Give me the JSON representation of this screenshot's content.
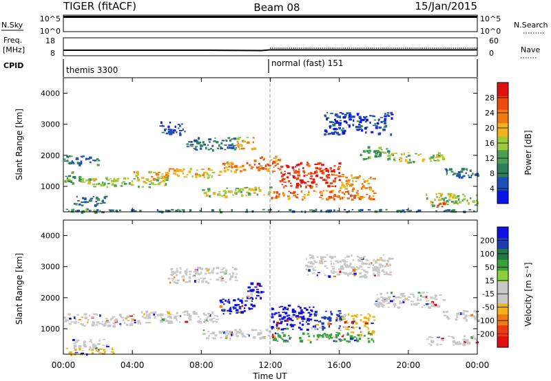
{
  "header": {
    "left": "TIGER (fitACF)",
    "center": "Beam 08",
    "right": "15/Jan/2015"
  },
  "top_panels": {
    "nsky_label": "N.Sky",
    "nsearch_label": "N.Search",
    "nsky_ticks": [
      "10^5",
      "10^0"
    ],
    "freq_label_1": "Freq.",
    "freq_label_2": "[MHz]",
    "freq_ticks": [
      "18",
      "8"
    ],
    "nave_label": "Nave",
    "nave_ticks": [
      "60",
      "0"
    ],
    "cpid_label": "CPID",
    "cpid_left": "themis 3300",
    "cpid_right": "normal (fast) 151"
  },
  "colors": {
    "power_scale": [
      "#0a14e6",
      "#1e50b4",
      "#2c7f5a",
      "#4aa050",
      "#9ccc3a",
      "#f2b21a",
      "#f07a12",
      "#ee4a10",
      "#e01010"
    ],
    "velocity_scale": [
      "#1010e6",
      "#1e3cb4",
      "#227848",
      "#3aa23a",
      "#8ad03a",
      "#c8c8c8",
      "#c8c8c8",
      "#f2b21a",
      "#f07a12",
      "#ee3a10",
      "#e01010"
    ]
  },
  "chart_data": [
    {
      "type": "heatmap",
      "title": "Power",
      "ylabel": "Slant Range [km]",
      "ylim": [
        180,
        4500
      ],
      "yticks": [
        "1000",
        "2000",
        "3000",
        "4000"
      ],
      "ytick_values": [
        1000,
        2000,
        3000,
        4000
      ],
      "colorbar_label": "Power [dB]",
      "colorbar_ticks": [
        "4",
        "8",
        "12",
        "16",
        "20",
        "24",
        "28"
      ],
      "colorbar_values": [
        4,
        8,
        12,
        16,
        20,
        24,
        28
      ],
      "colorbar_range": [
        0,
        32
      ],
      "bands": [
        {
          "t": [
            0.0,
            2.0
          ],
          "r": [
            1700,
            2000
          ],
          "v": 8
        },
        {
          "t": [
            0.0,
            1.0
          ],
          "r": [
            1100,
            1500
          ],
          "v": 12
        },
        {
          "t": [
            1.0,
            6.0
          ],
          "r": [
            1000,
            1300
          ],
          "v": 16
        },
        {
          "t": [
            0.5,
            2.5
          ],
          "r": [
            400,
            700
          ],
          "v": 8
        },
        {
          "t": [
            0.0,
            2.0
          ],
          "r": [
            200,
            300
          ],
          "v": 12
        },
        {
          "t": [
            4.0,
            6.0
          ],
          "r": [
            1200,
            1500
          ],
          "v": 20
        },
        {
          "t": [
            6.0,
            9.0
          ],
          "r": [
            1300,
            1600
          ],
          "v": 20
        },
        {
          "t": [
            9.0,
            11.0
          ],
          "r": [
            1500,
            1800
          ],
          "v": 24
        },
        {
          "t": [
            11.0,
            12.5
          ],
          "r": [
            1500,
            2000
          ],
          "v": 24
        },
        {
          "t": [
            12.5,
            16.0
          ],
          "r": [
            1000,
            1800
          ],
          "v": 28
        },
        {
          "t": [
            16.0,
            18.0
          ],
          "r": [
            900,
            1400
          ],
          "v": 20
        },
        {
          "t": [
            8.0,
            12.0
          ],
          "r": [
            700,
            1000
          ],
          "v": 16
        },
        {
          "t": [
            12.0,
            18.0
          ],
          "r": [
            600,
            900
          ],
          "v": 24
        },
        {
          "t": [
            17.0,
            19.0
          ],
          "r": [
            1900,
            2300
          ],
          "v": 12
        },
        {
          "t": [
            19.0,
            22.0
          ],
          "r": [
            1800,
            2100
          ],
          "v": 16
        },
        {
          "t": [
            22.0,
            24.0
          ],
          "r": [
            1300,
            1600
          ],
          "v": 8
        },
        {
          "t": [
            21.0,
            24.0
          ],
          "r": [
            400,
            800
          ],
          "v": 16
        },
        {
          "t": [
            21.5,
            22.2
          ],
          "r": [
            300,
            500
          ],
          "v": 28
        },
        {
          "t": [
            5.5,
            7.0
          ],
          "r": [
            2700,
            3100
          ],
          "v": 4
        },
        {
          "t": [
            7.0,
            10.0
          ],
          "r": [
            2200,
            2600
          ],
          "v": 8
        },
        {
          "t": [
            10.0,
            11.0
          ],
          "r": [
            2200,
            2600
          ],
          "v": 20
        },
        {
          "t": [
            15.0,
            19.0
          ],
          "r": [
            2700,
            3400
          ],
          "v": 4
        },
        {
          "t": [
            0.0,
            24.0
          ],
          "r": [
            200,
            280
          ],
          "v": 8
        }
      ]
    },
    {
      "type": "heatmap",
      "title": "Velocity",
      "ylabel": "Slant Range [km]",
      "xlabel": "Time UT",
      "xticks": [
        "00:00",
        "04:00",
        "08:00",
        "12:00",
        "16:00",
        "20:00",
        "00:00"
      ],
      "xtick_values": [
        0,
        4,
        8,
        12,
        16,
        20,
        24
      ],
      "ylim": [
        180,
        4500
      ],
      "yticks": [
        "1000",
        "2000",
        "3000",
        "4000"
      ],
      "ytick_values": [
        1000,
        2000,
        3000,
        4000
      ],
      "colorbar_label": "Velocity [m s⁻¹]",
      "colorbar_ticks": [
        "200",
        "100",
        "50",
        "15",
        "-15",
        "-50",
        "-100",
        "-200"
      ],
      "bands": [
        {
          "t": [
            0.0,
            4.0
          ],
          "r": [
            1100,
            1500
          ],
          "v": -15
        },
        {
          "t": [
            4.0,
            9.0
          ],
          "r": [
            1200,
            1600
          ],
          "v": 15
        },
        {
          "t": [
            0.5,
            2.5
          ],
          "r": [
            400,
            700
          ],
          "v": -15
        },
        {
          "t": [
            0.0,
            3.0
          ],
          "r": [
            200,
            400
          ],
          "v": -50
        },
        {
          "t": [
            9.0,
            11.0
          ],
          "r": [
            1500,
            2000
          ],
          "v": 200
        },
        {
          "t": [
            10.5,
            11.5
          ],
          "r": [
            2000,
            2500
          ],
          "v": 200
        },
        {
          "t": [
            12.0,
            14.5
          ],
          "r": [
            1000,
            1800
          ],
          "v": 200
        },
        {
          "t": [
            14.5,
            16.0
          ],
          "r": [
            1000,
            1600
          ],
          "v": 100
        },
        {
          "t": [
            16.0,
            18.0
          ],
          "r": [
            900,
            1500
          ],
          "v": -50
        },
        {
          "t": [
            8.0,
            12.0
          ],
          "r": [
            700,
            1000
          ],
          "v": 15
        },
        {
          "t": [
            12.0,
            18.0
          ],
          "r": [
            600,
            900
          ],
          "v": 50
        },
        {
          "t": [
            18.0,
            22.0
          ],
          "r": [
            1700,
            2200
          ],
          "v": -15
        },
        {
          "t": [
            22.0,
            24.0
          ],
          "r": [
            1300,
            1600
          ],
          "v": -15
        },
        {
          "t": [
            21.0,
            24.0
          ],
          "r": [
            500,
            800
          ],
          "v": -15
        },
        {
          "t": [
            6.0,
            10.0
          ],
          "r": [
            2500,
            3000
          ],
          "v": 15
        },
        {
          "t": [
            14.0,
            19.0
          ],
          "r": [
            2700,
            3400
          ],
          "v": 15
        }
      ]
    }
  ]
}
